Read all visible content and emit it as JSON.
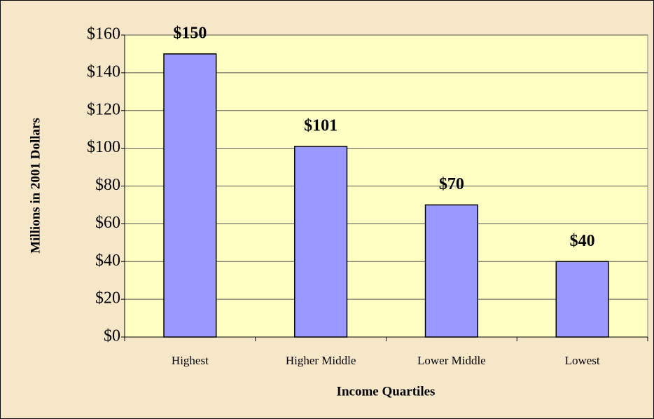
{
  "chart_data": {
    "type": "bar",
    "xlabel": "Income Quartiles",
    "ylabel": "Millions in 2001 Dollars",
    "categories": [
      "Highest",
      "Higher Middle",
      "Lower Middle",
      "Lowest"
    ],
    "values": [
      150,
      101,
      70,
      40
    ],
    "value_labels": [
      "$150",
      "$101",
      "$70",
      "$40"
    ],
    "color": "#9999ff",
    "ylim": [
      0,
      160
    ],
    "yticks": [
      {
        "value": 0,
        "label": "$0"
      },
      {
        "value": 20,
        "label": "$20"
      },
      {
        "value": 40,
        "label": "$40"
      },
      {
        "value": 60,
        "label": "$60"
      },
      {
        "value": 80,
        "label": "$80"
      },
      {
        "value": 100,
        "label": "$100"
      },
      {
        "value": 120,
        "label": "$120"
      },
      {
        "value": 140,
        "label": "$140"
      },
      {
        "value": 160,
        "label": "$160"
      }
    ],
    "grid": true
  }
}
